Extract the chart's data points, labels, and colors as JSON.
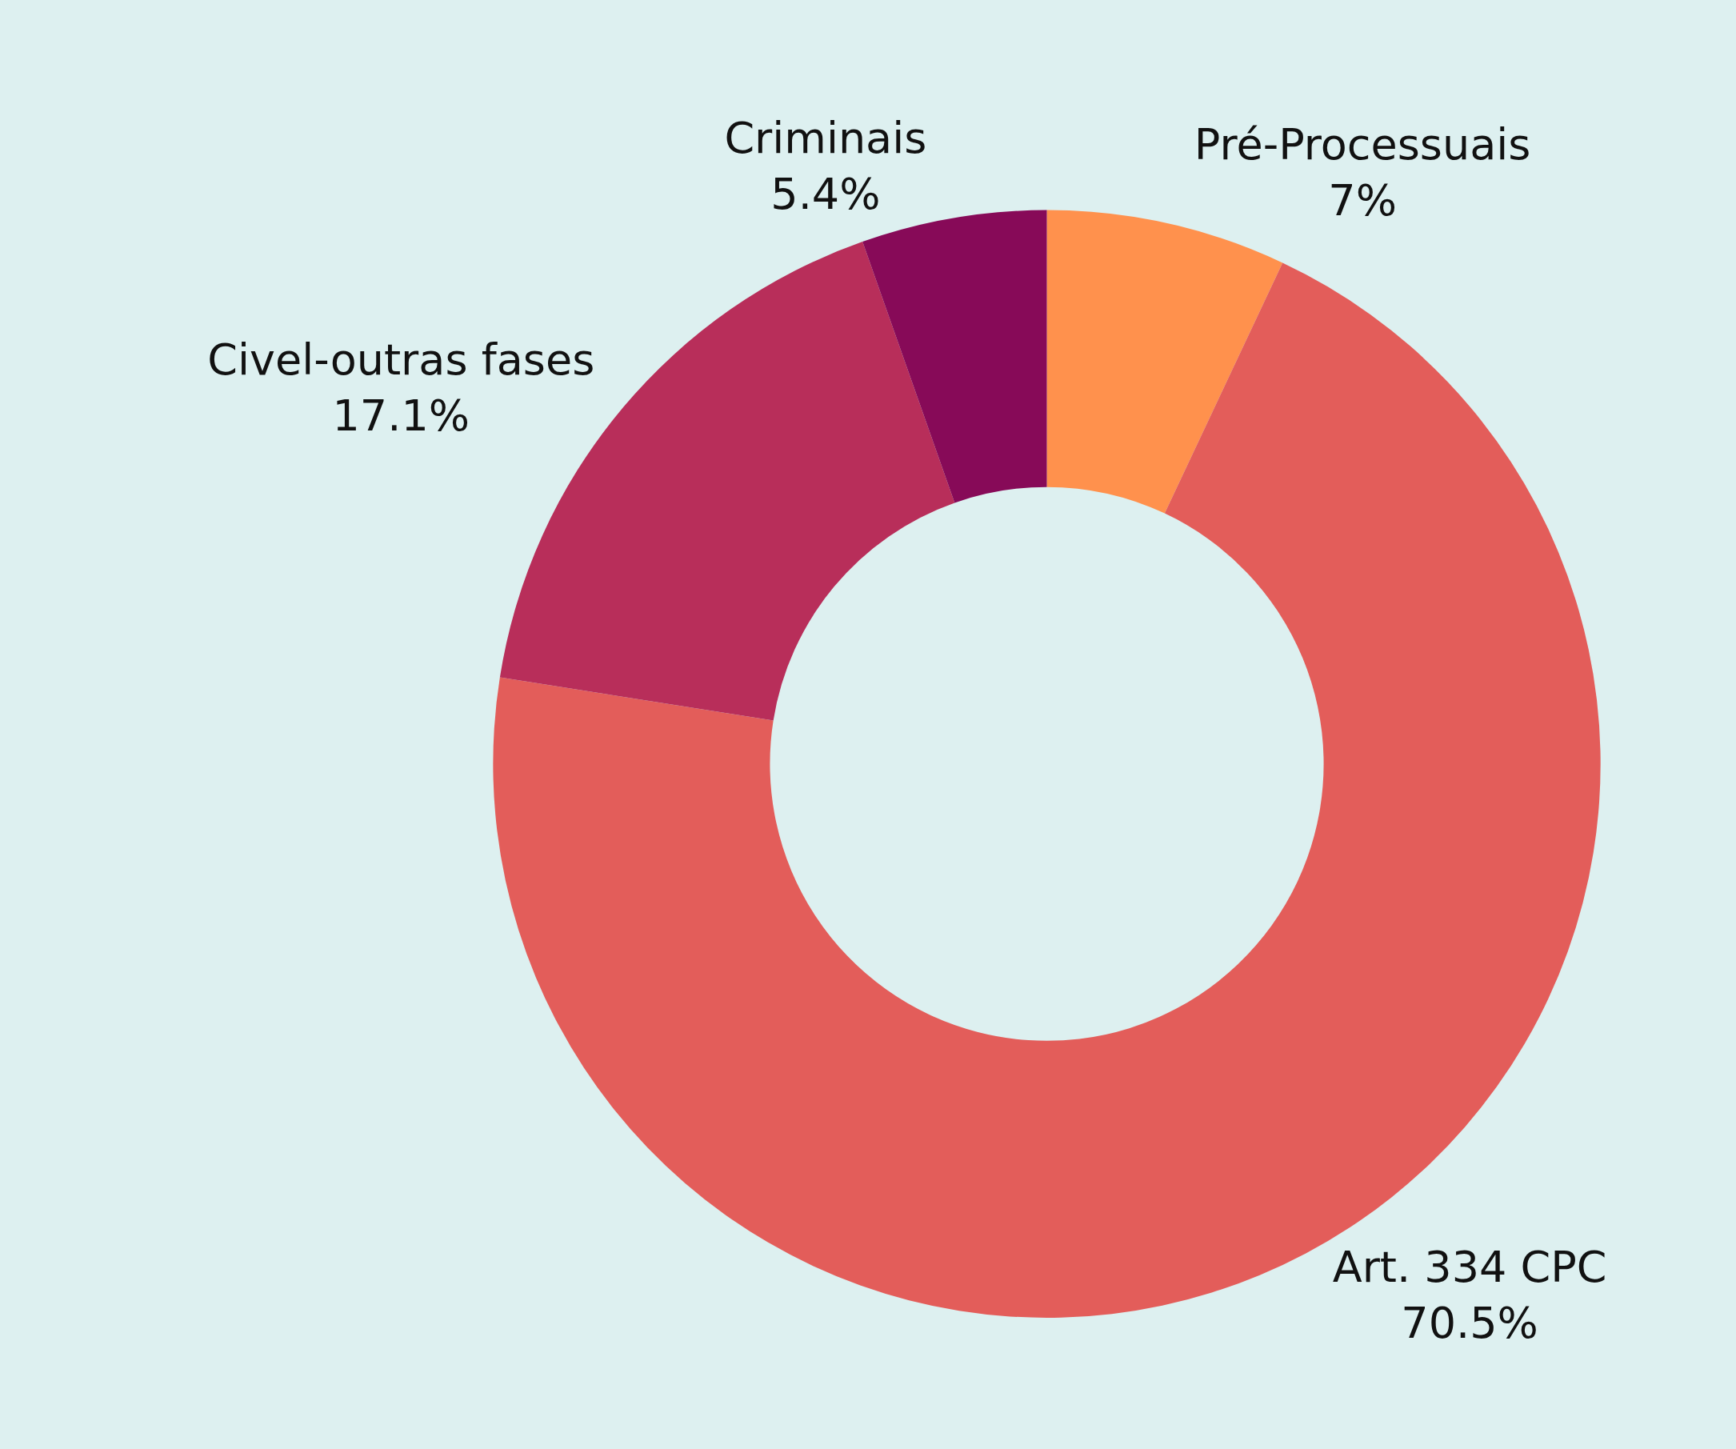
{
  "chart_data": {
    "type": "donut",
    "categories": [
      "Pré-Processuais",
      "Art. 334 CPC",
      "Civel-outras fases",
      "Criminais"
    ],
    "values": [
      7,
      70.5,
      17.1,
      5.4
    ],
    "value_labels": [
      "7%",
      "70.5%",
      "17.1%",
      "5.4%"
    ],
    "colors": [
      "#ff914d",
      "#e35d5a",
      "#b82e5a",
      "#870a58"
    ],
    "legend": false
  }
}
